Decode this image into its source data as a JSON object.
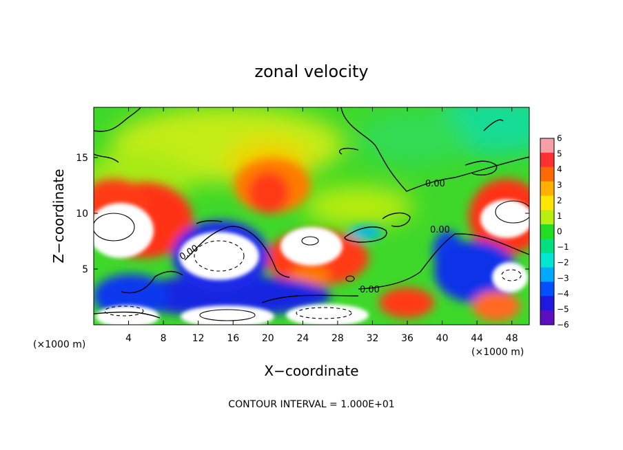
{
  "chart_data": {
    "type": "heatmap",
    "title": "zonal velocity",
    "xlabel": "X−coordinate",
    "ylabel": "Z−coordinate",
    "x_unit": "(×1000 m)",
    "z_unit": "(×1000 m)",
    "xlim": [
      0,
      50
    ],
    "ylim": [
      0,
      19.5
    ],
    "xticks": [
      4,
      8,
      12,
      16,
      20,
      24,
      28,
      32,
      36,
      40,
      44,
      48
    ],
    "yticks": [
      5,
      10,
      15
    ],
    "colorbar": {
      "min": -6,
      "max": 6,
      "ticks": [
        "6",
        "5",
        "4",
        "3",
        "2",
        "1",
        "0",
        "−1",
        "−2",
        "−3",
        "−4",
        "−5",
        "−6"
      ],
      "colors": [
        "#f4a0a8",
        "#ff3030",
        "#ff6a00",
        "#ffb000",
        "#ffe600",
        "#b8ee10",
        "#22dd22",
        "#00e080",
        "#00e6d0",
        "#00a8ff",
        "#0050ff",
        "#2018e0",
        "#5a10c0"
      ]
    },
    "contour_labels": [
      "0.00",
      "0.00",
      "0.00",
      "0.00"
    ],
    "footer": "CONTOUR INTERVAL = 1.000E+01"
  }
}
